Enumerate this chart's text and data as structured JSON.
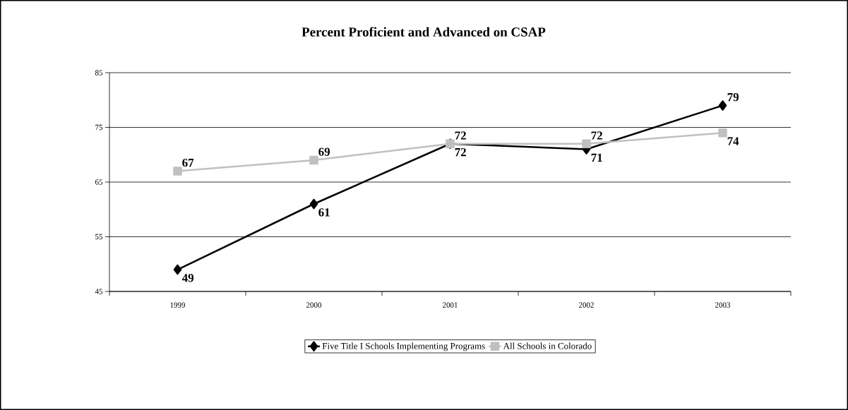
{
  "chart_data": {
    "type": "line",
    "title": "Percent Proficient and Advanced on CSAP",
    "categories": [
      "1999",
      "2000",
      "2001",
      "2002",
      "2003"
    ],
    "series": [
      {
        "name": "Five Title I Schools Implementing Programs",
        "color": "#000000",
        "marker": "diamond",
        "values": [
          49,
          61,
          72,
          71,
          79
        ]
      },
      {
        "name": "All Schools in Colorado",
        "color": "#c0c0c0",
        "marker": "square",
        "values": [
          67,
          69,
          72,
          72,
          74
        ]
      }
    ],
    "ylim": [
      45,
      85
    ],
    "yticks": [
      45,
      55,
      65,
      75,
      85
    ],
    "grid": "y",
    "legend": "bottom",
    "data_labels": true
  }
}
